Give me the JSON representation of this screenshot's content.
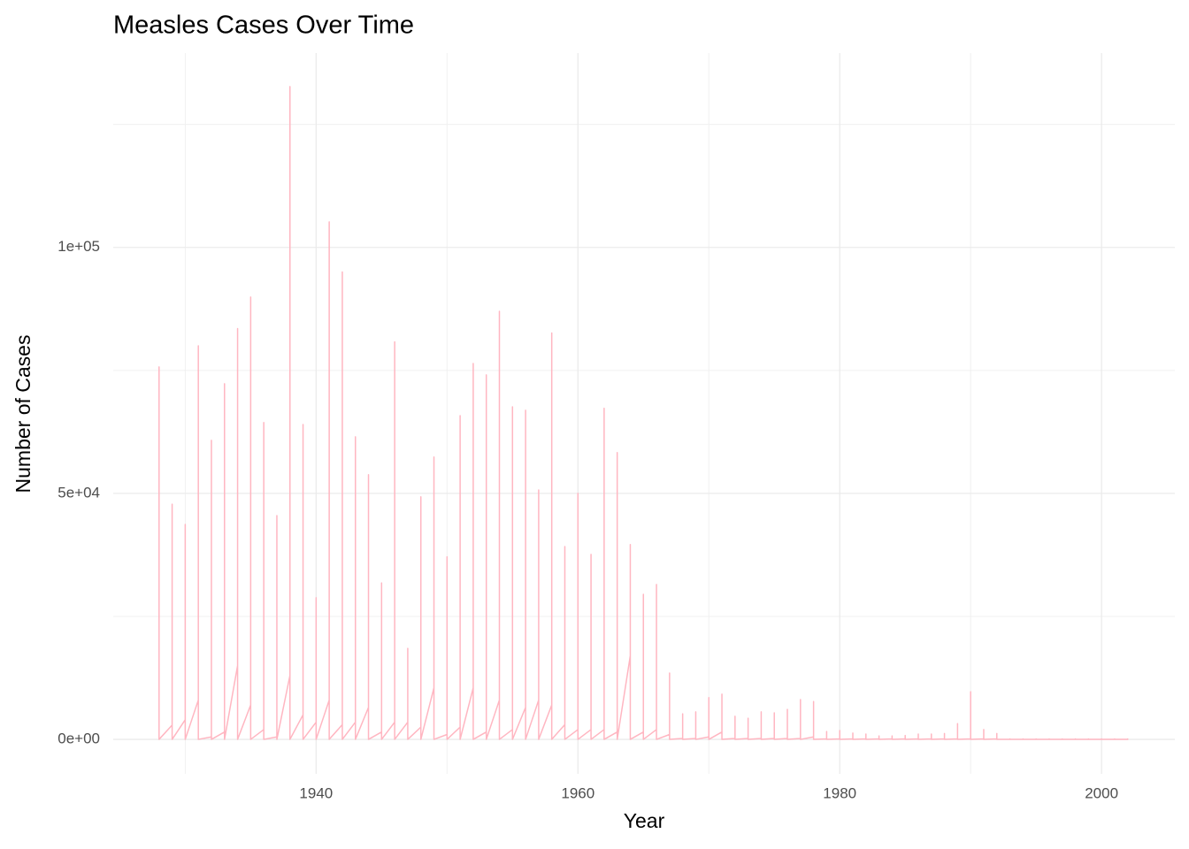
{
  "chart_data": {
    "type": "line",
    "title": "Measles Cases Over Time",
    "x_label": "Year",
    "y_label": "Number of Cases",
    "color": "#ffb6c1",
    "grid": true,
    "x": [
      1928,
      1928,
      1928,
      1929,
      1929,
      1929,
      1930,
      1930,
      1930,
      1931,
      1931,
      1931,
      1932,
      1932,
      1932,
      1933,
      1933,
      1933,
      1934,
      1934,
      1934,
      1935,
      1935,
      1935,
      1936,
      1936,
      1936,
      1937,
      1937,
      1937,
      1938,
      1938,
      1938,
      1939,
      1939,
      1939,
      1940,
      1940,
      1940,
      1941,
      1941,
      1941,
      1942,
      1942,
      1942,
      1943,
      1943,
      1943,
      1944,
      1944,
      1944,
      1945,
      1945,
      1945,
      1946,
      1946,
      1946,
      1947,
      1947,
      1947,
      1948,
      1948,
      1948,
      1949,
      1949,
      1949,
      1950,
      1950,
      1950,
      1951,
      1951,
      1951,
      1952,
      1952,
      1952,
      1953,
      1953,
      1953,
      1954,
      1954,
      1954,
      1955,
      1955,
      1955,
      1956,
      1956,
      1956,
      1957,
      1957,
      1957,
      1958,
      1958,
      1958,
      1959,
      1959,
      1959,
      1960,
      1960,
      1960,
      1961,
      1961,
      1961,
      1962,
      1962,
      1962,
      1963,
      1963,
      1963,
      1964,
      1964,
      1964,
      1965,
      1965,
      1965,
      1966,
      1966,
      1966,
      1967,
      1967,
      1967,
      1968,
      1968,
      1968,
      1969,
      1969,
      1969,
      1970,
      1970,
      1970,
      1971,
      1971,
      1971,
      1972,
      1972,
      1972,
      1973,
      1973,
      1973,
      1974,
      1974,
      1974,
      1975,
      1975,
      1975,
      1976,
      1976,
      1976,
      1977,
      1977,
      1977,
      1978,
      1978,
      1978,
      1979,
      1979,
      1979,
      1980,
      1980,
      1980,
      1981,
      1981,
      1981,
      1982,
      1982,
      1982,
      1983,
      1983,
      1983,
      1984,
      1984,
      1984,
      1985,
      1985,
      1985,
      1986,
      1986,
      1986,
      1987,
      1987,
      1987,
      1988,
      1988,
      1988,
      1989,
      1989,
      1989,
      1990,
      1990,
      1990,
      1991,
      1991,
      1991,
      1992,
      1992,
      1992,
      1993,
      1993,
      1993,
      1994,
      1994,
      1994,
      1995,
      1995,
      1995,
      1996,
      1996,
      1996,
      1997,
      1997,
      1997,
      1998,
      1998,
      1998,
      1999,
      1999,
      1999,
      2000,
      2000,
      2000,
      2001,
      2001,
      2001,
      2002,
      2002,
      2002
    ],
    "values": [
      0,
      75700,
      0,
      2900,
      47800,
      0,
      4000,
      43700,
      0,
      8000,
      80000,
      0,
      500,
      60800,
      0,
      1500,
      72300,
      0,
      15000,
      83500,
      0,
      7000,
      89900,
      0,
      2000,
      64400,
      0,
      500,
      45500,
      0,
      13000,
      132700,
      0,
      5000,
      64000,
      0,
      3500,
      28800,
      0,
      8000,
      105200,
      0,
      3000,
      95000,
      0,
      3500,
      61500,
      0,
      6500,
      53800,
      0,
      1500,
      31800,
      0,
      3500,
      80800,
      0,
      3500,
      18500,
      0,
      2500,
      49300,
      0,
      10500,
      57400,
      0,
      1000,
      37100,
      0,
      2500,
      65800,
      0,
      10500,
      76400,
      0,
      1500,
      74100,
      0,
      8000,
      87000,
      0,
      2000,
      67600,
      0,
      6500,
      66900,
      0,
      8000,
      50700,
      0,
      7000,
      82600,
      0,
      3000,
      39200,
      0,
      2000,
      50000,
      0,
      2000,
      37600,
      0,
      2000,
      67300,
      0,
      1500,
      58300,
      0,
      17000,
      39600,
      0,
      1500,
      29500,
      0,
      2000,
      31500,
      0,
      1000,
      13500,
      0,
      200,
      5200,
      0,
      200,
      5600,
      0,
      500,
      8500,
      0,
      1500,
      9200,
      0,
      200,
      4700,
      0,
      200,
      4300,
      0,
      200,
      5600,
      0,
      200,
      5400,
      0,
      200,
      6100,
      0,
      200,
      8100,
      0,
      500,
      7700,
      0,
      100,
      1600,
      0,
      100,
      1800,
      0,
      100,
      1300,
      0,
      100,
      1100,
      0,
      100,
      700,
      0,
      100,
      700,
      0,
      100,
      800,
      0,
      100,
      1100,
      0,
      100,
      1100,
      0,
      100,
      1200,
      0,
      100,
      3200,
      0,
      100,
      9700,
      0,
      100,
      2000,
      0,
      100,
      1200,
      0,
      0,
      100,
      0,
      0,
      100,
      0,
      0,
      100,
      0,
      0,
      100,
      0,
      0,
      100,
      0,
      0,
      100,
      0,
      0,
      100,
      0,
      0,
      100,
      0,
      0,
      100,
      0,
      0,
      100,
      0
    ],
    "xlim": [
      1924.5,
      2005.6
    ],
    "xticks": [
      1940,
      1960,
      1980,
      2000
    ],
    "ylim": [
      -7000,
      139500
    ],
    "yticks": [
      {
        "value": 0,
        "label": "0e+00"
      },
      {
        "value": 50000,
        "label": "5e+04"
      },
      {
        "value": 100000,
        "label": "1e+05"
      }
    ]
  }
}
